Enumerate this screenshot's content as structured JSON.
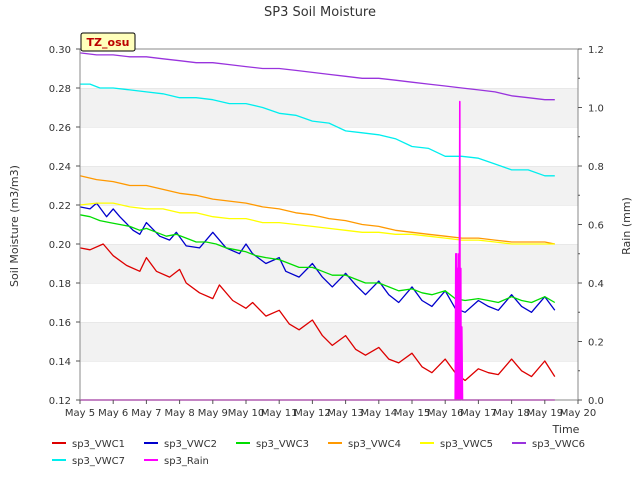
{
  "chart_data": {
    "type": "line",
    "title": "SP3 Soil Moisture",
    "xlabel": "Time",
    "ylabel": "Soil Moisture (m3/m3)",
    "y2label": "Rain (mm)",
    "badge": "TZ_osu",
    "grid": true,
    "ylim": [
      0.12,
      0.3
    ],
    "y2lim": [
      0.0,
      1.2
    ],
    "xlim": [
      5,
      20
    ],
    "xticks": [
      5,
      6,
      7,
      8,
      9,
      10,
      11,
      12,
      13,
      14,
      15,
      16,
      17,
      18,
      19,
      20
    ],
    "xtick_labels": [
      "May 5",
      "May 6",
      "May 7",
      "May 8",
      "May 9",
      "May 10",
      "May 11",
      "May 12",
      "May 13",
      "May 14",
      "May 15",
      "May 16",
      "May 17",
      "May 18",
      "May 19",
      "May 20"
    ],
    "yticks": [
      0.12,
      0.14,
      0.16,
      0.18,
      0.2,
      0.22,
      0.24,
      0.26,
      0.28,
      0.3
    ],
    "ytick_labels": [
      "0.12",
      "0.14",
      "0.16",
      "0.18",
      "0.20",
      "0.22",
      "0.24",
      "0.26",
      "0.28",
      "0.30"
    ],
    "y2ticks": [
      0.0,
      0.2,
      0.4,
      0.6,
      0.8,
      1.0,
      1.2
    ],
    "y2tick_labels": [
      "0.0",
      "0.2",
      "0.4",
      "0.6",
      "0.8",
      "1.0",
      "1.2"
    ],
    "legend_placement": "bottom",
    "series": [
      {
        "name": "sp3_VWC1",
        "color": "#dd0000",
        "axis": "left",
        "x": [
          5.0,
          5.3,
          5.7,
          6.0,
          6.4,
          6.8,
          7.0,
          7.3,
          7.7,
          8.0,
          8.2,
          8.6,
          9.0,
          9.2,
          9.6,
          10.0,
          10.2,
          10.6,
          11.0,
          11.3,
          11.6,
          12.0,
          12.3,
          12.6,
          13.0,
          13.3,
          13.6,
          14.0,
          14.3,
          14.6,
          15.0,
          15.3,
          15.6,
          16.0,
          16.3,
          16.6,
          17.0,
          17.3,
          17.6,
          18.0,
          18.3,
          18.6,
          19.0,
          19.3
        ],
        "y": [
          0.198,
          0.197,
          0.2,
          0.194,
          0.189,
          0.186,
          0.193,
          0.186,
          0.183,
          0.187,
          0.18,
          0.175,
          0.172,
          0.179,
          0.171,
          0.167,
          0.17,
          0.163,
          0.166,
          0.159,
          0.156,
          0.161,
          0.153,
          0.148,
          0.153,
          0.146,
          0.143,
          0.147,
          0.141,
          0.139,
          0.144,
          0.137,
          0.134,
          0.141,
          0.134,
          0.13,
          0.136,
          0.134,
          0.133,
          0.141,
          0.135,
          0.132,
          0.14,
          0.132
        ]
      },
      {
        "name": "sp3_VWC2",
        "color": "#0000cc",
        "axis": "left",
        "x": [
          5.0,
          5.3,
          5.5,
          5.8,
          6.0,
          6.2,
          6.6,
          6.8,
          7.0,
          7.4,
          7.7,
          7.9,
          8.2,
          8.6,
          9.0,
          9.4,
          9.8,
          10.0,
          10.2,
          10.6,
          11.0,
          11.2,
          11.6,
          12.0,
          12.3,
          12.6,
          13.0,
          13.3,
          13.6,
          14.0,
          14.3,
          14.6,
          15.0,
          15.3,
          15.6,
          16.0,
          16.3,
          16.6,
          17.0,
          17.3,
          17.6,
          18.0,
          18.3,
          18.6,
          19.0,
          19.3
        ],
        "y": [
          0.219,
          0.218,
          0.221,
          0.214,
          0.218,
          0.214,
          0.207,
          0.205,
          0.211,
          0.204,
          0.202,
          0.206,
          0.199,
          0.198,
          0.206,
          0.198,
          0.195,
          0.2,
          0.195,
          0.19,
          0.193,
          0.186,
          0.183,
          0.19,
          0.183,
          0.178,
          0.185,
          0.179,
          0.174,
          0.181,
          0.174,
          0.17,
          0.178,
          0.171,
          0.168,
          0.176,
          0.167,
          0.165,
          0.171,
          0.168,
          0.166,
          0.174,
          0.168,
          0.165,
          0.173,
          0.166
        ]
      },
      {
        "name": "sp3_VWC3",
        "color": "#00dd00",
        "axis": "left",
        "x": [
          5.0,
          5.3,
          5.6,
          5.9,
          6.2,
          6.5,
          6.8,
          7.0,
          7.3,
          7.6,
          7.9,
          8.2,
          8.5,
          8.8,
          9.1,
          9.4,
          9.7,
          10.0,
          10.3,
          10.6,
          11.0,
          11.3,
          11.6,
          12.0,
          12.3,
          12.6,
          13.0,
          13.3,
          13.6,
          14.0,
          14.3,
          14.6,
          15.0,
          15.3,
          15.6,
          16.0,
          16.3,
          16.6,
          17.0,
          17.3,
          17.6,
          18.0,
          18.3,
          18.6,
          19.0,
          19.3
        ],
        "y": [
          0.215,
          0.214,
          0.212,
          0.211,
          0.21,
          0.209,
          0.207,
          0.208,
          0.206,
          0.204,
          0.205,
          0.203,
          0.201,
          0.201,
          0.2,
          0.198,
          0.197,
          0.196,
          0.194,
          0.193,
          0.192,
          0.19,
          0.188,
          0.188,
          0.186,
          0.184,
          0.184,
          0.182,
          0.18,
          0.18,
          0.178,
          0.176,
          0.177,
          0.175,
          0.174,
          0.176,
          0.172,
          0.171,
          0.172,
          0.171,
          0.17,
          0.173,
          0.171,
          0.17,
          0.173,
          0.17
        ]
      },
      {
        "name": "sp3_VWC4",
        "color": "#ff9900",
        "axis": "left",
        "x": [
          5.0,
          5.5,
          6.0,
          6.5,
          7.0,
          7.5,
          8.0,
          8.5,
          9.0,
          9.5,
          10.0,
          10.5,
          11.0,
          11.5,
          12.0,
          12.5,
          13.0,
          13.5,
          14.0,
          14.5,
          15.0,
          15.5,
          16.0,
          16.5,
          17.0,
          17.5,
          18.0,
          18.5,
          19.0,
          19.3
        ],
        "y": [
          0.235,
          0.233,
          0.232,
          0.23,
          0.23,
          0.228,
          0.226,
          0.225,
          0.223,
          0.222,
          0.221,
          0.219,
          0.218,
          0.216,
          0.215,
          0.213,
          0.212,
          0.21,
          0.209,
          0.207,
          0.206,
          0.205,
          0.204,
          0.203,
          0.203,
          0.202,
          0.201,
          0.201,
          0.201,
          0.2
        ]
      },
      {
        "name": "sp3_VWC5",
        "color": "#ffff00",
        "axis": "left",
        "x": [
          5.0,
          5.5,
          6.0,
          6.5,
          7.0,
          7.5,
          8.0,
          8.5,
          9.0,
          9.5,
          10.0,
          10.5,
          11.0,
          11.5,
          12.0,
          12.5,
          13.0,
          13.5,
          14.0,
          14.5,
          15.0,
          15.5,
          16.0,
          16.5,
          17.0,
          17.5,
          18.0,
          18.5,
          19.0,
          19.3
        ],
        "y": [
          0.22,
          0.221,
          0.221,
          0.219,
          0.218,
          0.218,
          0.216,
          0.216,
          0.214,
          0.213,
          0.213,
          0.211,
          0.211,
          0.21,
          0.209,
          0.208,
          0.207,
          0.206,
          0.206,
          0.205,
          0.205,
          0.204,
          0.203,
          0.202,
          0.202,
          0.201,
          0.2,
          0.2,
          0.2,
          0.2
        ]
      },
      {
        "name": "sp3_VWC6",
        "color": "#9933dd",
        "axis": "left",
        "x": [
          5.0,
          5.5,
          6.0,
          6.5,
          7.0,
          7.5,
          8.0,
          8.5,
          9.0,
          9.5,
          10.0,
          10.5,
          11.0,
          11.5,
          12.0,
          12.5,
          13.0,
          13.5,
          14.0,
          14.5,
          15.0,
          15.5,
          16.0,
          16.5,
          17.0,
          17.5,
          18.0,
          18.5,
          19.0,
          19.3
        ],
        "y": [
          0.298,
          0.297,
          0.297,
          0.296,
          0.296,
          0.295,
          0.294,
          0.293,
          0.293,
          0.292,
          0.291,
          0.29,
          0.29,
          0.289,
          0.288,
          0.287,
          0.286,
          0.285,
          0.285,
          0.284,
          0.283,
          0.282,
          0.281,
          0.28,
          0.279,
          0.278,
          0.276,
          0.275,
          0.274,
          0.274
        ]
      },
      {
        "name": "sp3_VWC7",
        "color": "#00eeee",
        "axis": "left",
        "x": [
          5.0,
          5.3,
          5.6,
          6.0,
          6.5,
          7.0,
          7.5,
          8.0,
          8.5,
          9.0,
          9.5,
          10.0,
          10.5,
          11.0,
          11.5,
          12.0,
          12.5,
          13.0,
          13.5,
          14.0,
          14.5,
          15.0,
          15.5,
          16.0,
          16.5,
          17.0,
          17.5,
          18.0,
          18.5,
          19.0,
          19.3
        ],
        "y": [
          0.282,
          0.282,
          0.28,
          0.28,
          0.279,
          0.278,
          0.277,
          0.275,
          0.275,
          0.274,
          0.272,
          0.272,
          0.27,
          0.267,
          0.266,
          0.263,
          0.262,
          0.258,
          0.257,
          0.256,
          0.254,
          0.25,
          0.249,
          0.245,
          0.245,
          0.244,
          0.241,
          0.238,
          0.238,
          0.235,
          0.235
        ]
      },
      {
        "name": "sp3_Rain",
        "color": "#ff00ff",
        "axis": "right",
        "x": [
          5.0,
          16.3,
          16.32,
          16.33,
          16.35,
          16.36,
          16.38,
          16.39,
          16.41,
          16.42,
          16.44,
          16.45,
          16.47,
          16.48,
          16.5,
          16.52,
          16.54,
          17.0,
          19.3
        ],
        "y": [
          0.0,
          0.0,
          0.5,
          0.0,
          0.5,
          0.0,
          0.45,
          0.0,
          0.5,
          0.0,
          1.02,
          0.0,
          0.45,
          0.0,
          0.25,
          0.0,
          0.0,
          0.0,
          0.0
        ]
      }
    ]
  }
}
